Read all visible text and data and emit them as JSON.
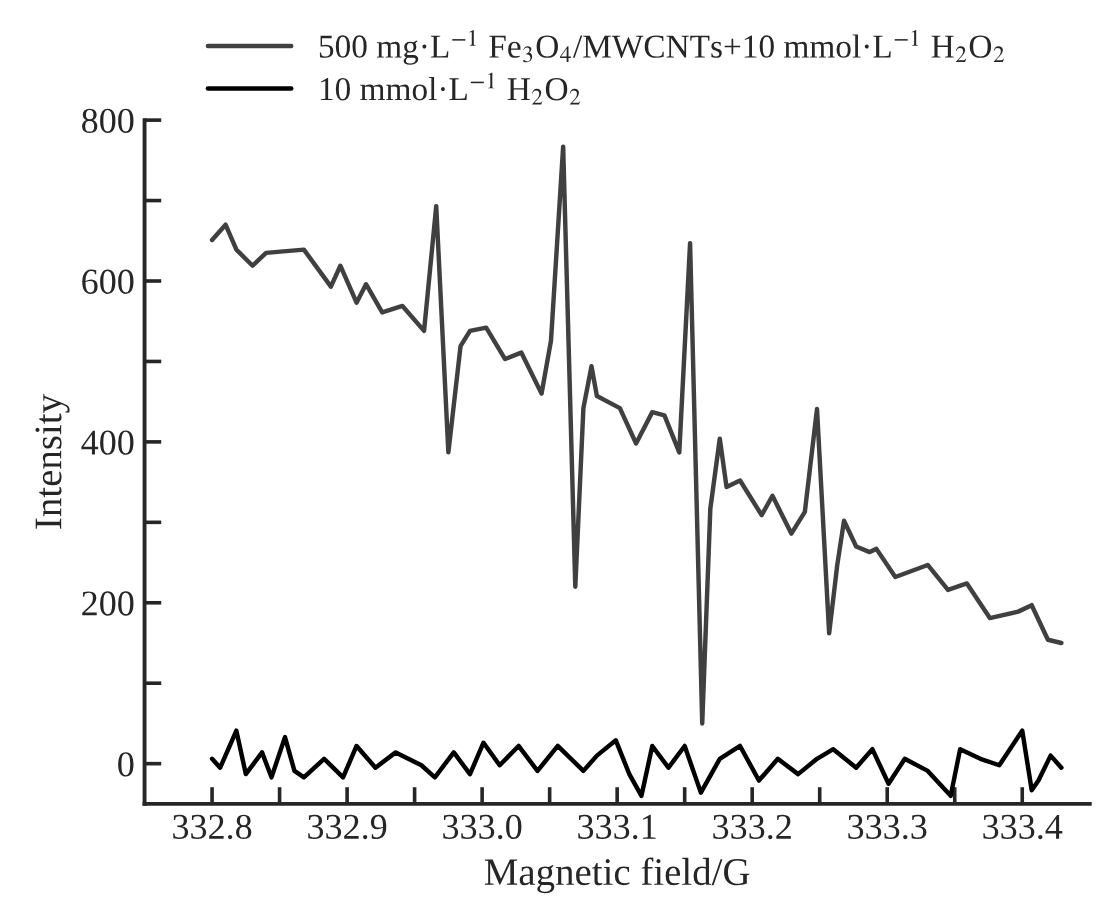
{
  "chart_data": {
    "type": "line",
    "xlabel": "Magnetic field/G",
    "ylabel": "Intensity",
    "xlim": [
      332.75,
      333.45
    ],
    "ylim": [
      -50,
      800
    ],
    "xticks": [
      {
        "value": 332.8,
        "label": "332.8"
      },
      {
        "value": 332.85,
        "label": null
      },
      {
        "value": 332.9,
        "label": "332.9"
      },
      {
        "value": 332.95,
        "label": null
      },
      {
        "value": 333.0,
        "label": "333.0"
      },
      {
        "value": 333.05,
        "label": null
      },
      {
        "value": 333.1,
        "label": "333.1"
      },
      {
        "value": 333.15,
        "label": null
      },
      {
        "value": 333.2,
        "label": "333.2"
      },
      {
        "value": 333.25,
        "label": null
      },
      {
        "value": 333.3,
        "label": "333.3"
      },
      {
        "value": 333.35,
        "label": null
      },
      {
        "value": 333.4,
        "label": "333.4"
      }
    ],
    "yticks": [
      0,
      {
        "value": 100,
        "label": null
      },
      200,
      {
        "value": 300,
        "label": null
      },
      400,
      {
        "value": 500,
        "label": null
      },
      600,
      {
        "value": 700,
        "label": null
      },
      800
    ],
    "grid": false,
    "legend": "top",
    "marker": "none",
    "line_style": "solid",
    "series": [
      {
        "name": "500 mg·L$^{−1}$ Fe$_{3}$O$_{4}$/MWCNTs+10 mmol·L$^{−1}$ H$_{2}$O$_{2}$",
        "color": "#404040",
        "x": [
          332.8,
          332.81,
          332.818,
          332.83,
          332.84,
          332.868,
          332.888,
          332.895,
          332.907,
          332.914,
          332.926,
          332.941,
          332.957,
          332.966,
          332.975,
          332.984,
          332.991,
          333.003,
          333.017,
          333.029,
          333.044,
          333.051,
          333.06,
          333.069,
          333.075,
          333.081,
          333.085,
          333.102,
          333.114,
          333.126,
          333.135,
          333.146,
          333.154,
          333.163,
          333.169,
          333.176,
          333.181,
          333.191,
          333.207,
          333.215,
          333.229,
          333.239,
          333.248,
          333.257,
          333.263,
          333.268,
          333.277,
          333.287,
          333.292,
          333.306,
          333.33,
          333.345,
          333.359,
          333.376,
          333.397,
          333.407,
          333.419,
          333.429
        ],
        "values": [
          651,
          670,
          639,
          619,
          635,
          639,
          593,
          619,
          573,
          596,
          561,
          569,
          538,
          693,
          387,
          519,
          538,
          542,
          503,
          511,
          460,
          526,
          767,
          220,
          442,
          494,
          457,
          442,
          398,
          437,
          433,
          387,
          647,
          50,
          317,
          404,
          344,
          352,
          309,
          333,
          286,
          313,
          441,
          162,
          247,
          302,
          270,
          263,
          267,
          232,
          247,
          216,
          224,
          181,
          189,
          197,
          154,
          150
        ]
      },
      {
        "name": "10 mmol·L$^{−1}$ H$_{2}$O$_{2}$",
        "color": "#000000",
        "x": [
          332.8,
          332.806,
          332.818,
          332.825,
          332.837,
          332.844,
          332.854,
          332.861,
          332.868,
          332.883,
          332.897,
          332.907,
          332.921,
          332.936,
          332.955,
          332.965,
          332.979,
          332.991,
          333.001,
          333.013,
          333.027,
          333.041,
          333.056,
          333.075,
          333.085,
          333.099,
          333.109,
          333.118,
          333.126,
          333.138,
          333.15,
          333.162,
          333.176,
          333.191,
          333.205,
          333.219,
          333.234,
          333.248,
          333.26,
          333.277,
          333.289,
          333.301,
          333.313,
          333.33,
          333.347,
          333.354,
          333.369,
          333.383,
          333.4,
          333.407,
          333.412,
          333.421,
          333.429
        ],
        "values": [
          6,
          -5,
          41,
          -13,
          14,
          -17,
          33,
          -9,
          -17,
          6,
          -17,
          22,
          -5,
          14,
          -2,
          -17,
          14,
          -13,
          26,
          -2,
          22,
          -9,
          22,
          -9,
          10,
          29,
          -13,
          -40,
          22,
          -5,
          22,
          -36,
          6,
          22,
          -21,
          6,
          -13,
          6,
          18,
          -5,
          18,
          -25,
          6,
          -9,
          -40,
          18,
          6,
          -2,
          41,
          -33,
          -21,
          10,
          -5
        ]
      }
    ]
  }
}
